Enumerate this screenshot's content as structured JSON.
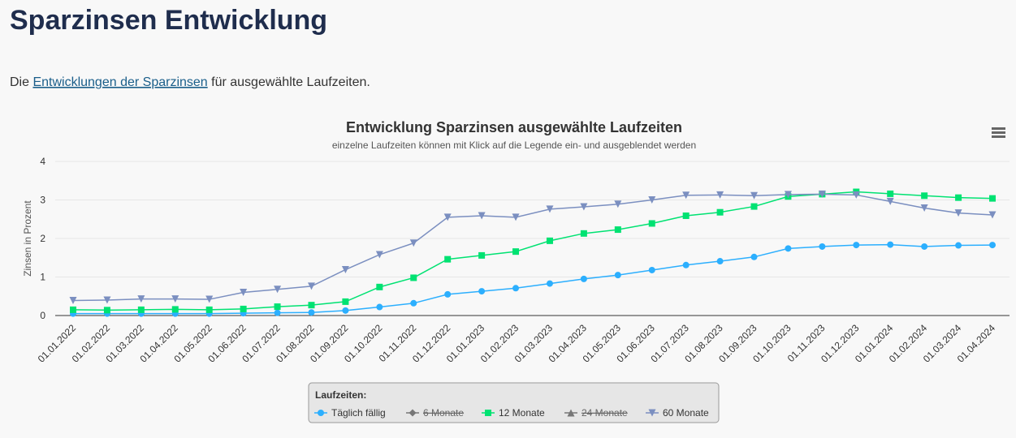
{
  "header": {
    "title": "Sparzinsen Entwicklung"
  },
  "intro": {
    "before": "Die ",
    "link": "Entwicklungen der Sparzinsen",
    "after": " für ausgewählte Laufzeiten."
  },
  "chart_data": {
    "type": "line",
    "title": "Entwicklung Sparzinsen ausgewählte Laufzeiten",
    "subtitle": "einzelne Laufzeiten können mit Klick auf die Legende ein- und ausgeblendet werden",
    "y_label": "Zinsen in Prozent",
    "legend_title": "Laufzeiten:",
    "categories": [
      "01.01.2022",
      "01.02.2022",
      "01.03.2022",
      "01.04.2022",
      "01.05.2022",
      "01.06.2022",
      "01.07.2022",
      "01.08.2022",
      "01.09.2022",
      "01.10.2022",
      "01.11.2022",
      "01.12.2022",
      "01.01.2023",
      "01.02.2023",
      "01.03.2023",
      "01.04.2023",
      "01.05.2023",
      "01.06.2023",
      "01.07.2023",
      "01.08.2023",
      "01.09.2023",
      "01.10.2023",
      "01.11.2023",
      "01.12.2023",
      "01.01.2024",
      "01.02.2024",
      "01.03.2024",
      "01.04.2024"
    ],
    "ylim": [
      0,
      4
    ],
    "yticks": [
      0,
      1,
      2,
      3,
      4
    ],
    "grid": true,
    "series": [
      {
        "name": "Täglich fällig",
        "color": "#2caffe",
        "marker": "circle",
        "visible": true,
        "values": [
          0.05,
          0.05,
          0.05,
          0.05,
          0.05,
          0.06,
          0.07,
          0.08,
          0.13,
          0.22,
          0.32,
          0.55,
          0.63,
          0.71,
          0.83,
          0.95,
          1.05,
          1.18,
          1.31,
          1.41,
          1.52,
          1.74,
          1.79,
          1.83,
          1.84,
          1.79,
          1.82,
          1.83
        ]
      },
      {
        "name": "6 Monate",
        "color": "#544fc5",
        "marker": "diamond",
        "visible": false
      },
      {
        "name": "12 Monate",
        "color": "#00e272",
        "marker": "square",
        "visible": true,
        "values": [
          0.15,
          0.14,
          0.15,
          0.16,
          0.15,
          0.17,
          0.23,
          0.27,
          0.36,
          0.74,
          0.98,
          1.46,
          1.56,
          1.66,
          1.94,
          2.13,
          2.23,
          2.39,
          2.59,
          2.68,
          2.83,
          3.09,
          3.15,
          3.21,
          3.16,
          3.11,
          3.06,
          3.04
        ]
      },
      {
        "name": "24 Monate",
        "color": "#fe6a35",
        "marker": "triangle",
        "visible": false
      },
      {
        "name": "60 Monate",
        "color": "#7b8fc0",
        "marker": "triangle-down",
        "visible": true,
        "values": [
          0.39,
          0.4,
          0.43,
          0.43,
          0.42,
          0.6,
          0.68,
          0.76,
          1.19,
          1.58,
          1.88,
          2.55,
          2.59,
          2.55,
          2.76,
          2.82,
          2.89,
          3.0,
          3.12,
          3.13,
          3.11,
          3.14,
          3.15,
          3.13,
          2.96,
          2.79,
          2.66,
          2.61
        ]
      }
    ]
  }
}
